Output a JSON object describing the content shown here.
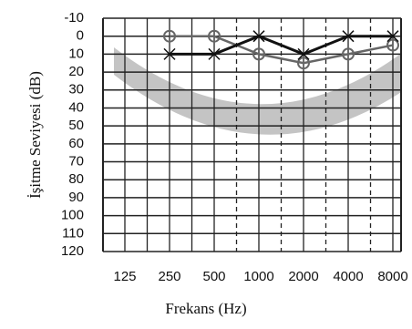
{
  "chart_data": {
    "type": "line",
    "x_label": "Frekans (Hz)",
    "y_label": "İşitme Seviyesi (dB)",
    "categories": [
      "125",
      "250",
      "500",
      "1000",
      "2000",
      "4000",
      "8000"
    ],
    "ylim": [
      -10,
      120
    ],
    "y_inverted": true,
    "yticks": [
      -10,
      0,
      10,
      20,
      30,
      40,
      50,
      60,
      70,
      80,
      90,
      100,
      110,
      120
    ],
    "grid": true,
    "series": [
      {
        "marker": "circle",
        "color": "#666666",
        "values": [
          null,
          0,
          0,
          10,
          15,
          10,
          5
        ]
      },
      {
        "marker": "x",
        "color": "#111111",
        "values": [
          null,
          10,
          10,
          0,
          10,
          0,
          0
        ]
      }
    ]
  }
}
